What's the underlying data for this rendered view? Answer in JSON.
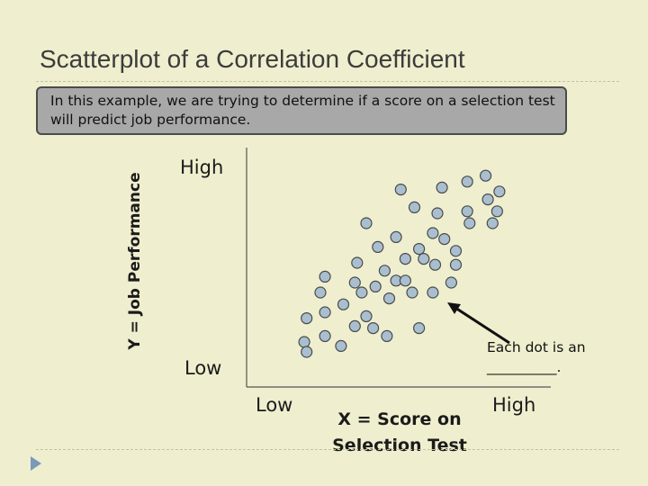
{
  "slide": {
    "title": "Scatterplot of a Correlation Coefficient",
    "callout": "In this example, we are trying to determine if a score on a selection test will predict job performance.",
    "annotation_line1": "Each dot is an",
    "annotation_line2": "__________."
  },
  "colors": {
    "background": "#efefcf",
    "dot_fill": "#a9bfd0",
    "dot_stroke": "#4a4a4a",
    "bullet": "#7a9ab8"
  },
  "icons": [
    "triangle-bullet-icon",
    "arrow-icon"
  ],
  "chart_data": {
    "type": "scatter",
    "title": "",
    "xlabel_line1": "X = Score on",
    "xlabel_line2": "Selection Test",
    "ylabel": "Y = Job Performance",
    "x_tick_labels": [
      "Low",
      "High"
    ],
    "y_tick_labels": [
      "High",
      "Low"
    ],
    "xlim": [
      0,
      100
    ],
    "ylim": [
      0,
      100
    ],
    "grid": false,
    "points": [
      [
        14,
        22
      ],
      [
        13,
        10
      ],
      [
        14,
        5
      ],
      [
        22,
        13
      ],
      [
        22,
        25
      ],
      [
        20,
        35
      ],
      [
        22,
        43
      ],
      [
        30,
        29
      ],
      [
        29,
        8
      ],
      [
        35,
        18
      ],
      [
        35,
        40
      ],
      [
        38,
        35
      ],
      [
        36,
        50
      ],
      [
        40,
        23
      ],
      [
        40,
        70
      ],
      [
        43,
        17
      ],
      [
        44,
        38
      ],
      [
        45,
        58
      ],
      [
        48,
        46
      ],
      [
        50,
        32
      ],
      [
        49,
        13
      ],
      [
        53,
        41
      ],
      [
        53,
        63
      ],
      [
        55,
        87
      ],
      [
        57,
        52
      ],
      [
        57,
        41
      ],
      [
        60,
        35
      ],
      [
        63,
        17
      ],
      [
        63,
        57
      ],
      [
        61,
        78
      ],
      [
        65,
        52
      ],
      [
        69,
        35
      ],
      [
        70,
        49
      ],
      [
        69,
        65
      ],
      [
        71,
        75
      ],
      [
        73,
        88
      ],
      [
        74,
        62
      ],
      [
        77,
        40
      ],
      [
        79,
        49
      ],
      [
        79,
        56
      ],
      [
        84,
        76
      ],
      [
        84,
        91
      ],
      [
        85,
        70
      ],
      [
        92,
        94
      ],
      [
        93,
        82
      ],
      [
        95,
        70
      ],
      [
        97,
        76
      ],
      [
        98,
        86
      ]
    ]
  }
}
